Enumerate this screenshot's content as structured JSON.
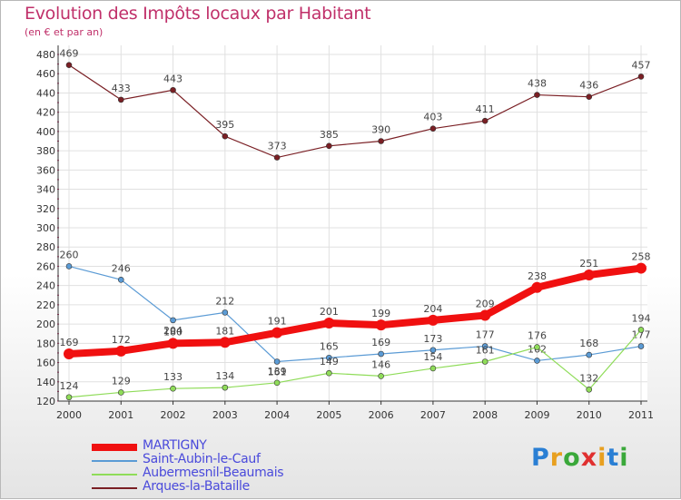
{
  "header": {
    "title": "Evolution des Impôts locaux par Habitant",
    "subtitle": "(en € et par an)"
  },
  "logo": {
    "text": "Proxiti"
  },
  "colors": {
    "accent": "#c0306a",
    "grid": "#e0e0e0"
  },
  "chart_data": {
    "type": "line",
    "title": "Evolution des Impôts locaux par Habitant",
    "ylabel": "(en € et par an)",
    "xlabel": "",
    "x": [
      "2000",
      "2001",
      "2002",
      "2003",
      "2004",
      "2005",
      "2006",
      "2007",
      "2008",
      "2009",
      "2010",
      "2011"
    ],
    "ylim": [
      120,
      480
    ],
    "ystep": 20,
    "grid": true,
    "legend": "bottom-left",
    "series": [
      {
        "name": "Arques-la-Bataille",
        "color": "#7a1f24",
        "values": [
          469,
          433,
          443,
          395,
          373,
          385,
          390,
          403,
          411,
          438,
          436,
          457
        ]
      },
      {
        "name": "Saint-Aubin-le-Cauf",
        "color": "#5b9bd5",
        "values": [
          260,
          246,
          204,
          212,
          161,
          165,
          169,
          173,
          177,
          162,
          168,
          177
        ]
      },
      {
        "name": "Aubermesnil-Beaumais",
        "color": "#8fdc59",
        "values": [
          124,
          129,
          133,
          134,
          139,
          149,
          146,
          154,
          161,
          176,
          132,
          194
        ]
      },
      {
        "name": "MARTIGNY",
        "color": "#f01010",
        "values": [
          169,
          172,
          180,
          181,
          191,
          201,
          199,
          204,
          209,
          238,
          251,
          258
        ]
      }
    ],
    "legend_order": [
      "MARTIGNY",
      "Saint-Aubin-le-Cauf",
      "Aubermesnil-Beaumais",
      "Arques-la-Bataille"
    ]
  }
}
